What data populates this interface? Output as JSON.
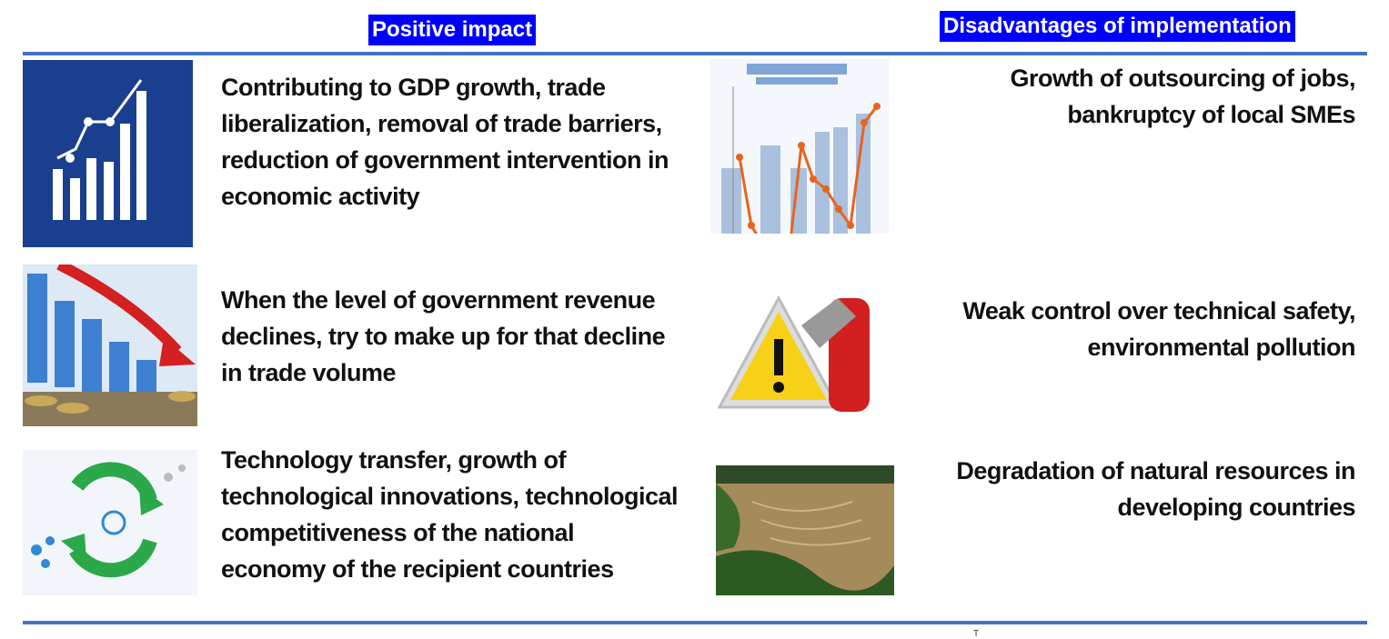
{
  "headers": {
    "positive": "Positive impact",
    "disadvantages": "Disadvantages of implementation"
  },
  "positive_items": [
    {
      "icon": "bar-chart-growth-icon",
      "text": "Contributing to GDP growth, trade liberalization, removal of trade barriers, reduction of government intervention in economic activity"
    },
    {
      "icon": "declining-chart-coins-image",
      "text": "When the level of government revenue declines, try to make up for that decline in trade volume"
    },
    {
      "icon": "technology-cycle-icon",
      "text": "Technology transfer, growth of technological innovations, technological competitiveness of the national economy of the recipient countries"
    }
  ],
  "disadvantage_items": [
    {
      "icon": "unemployment-chart-image",
      "text": "Growth of outsourcing of jobs, bankruptcy of local SMEs"
    },
    {
      "icon": "warning-extinguisher-image",
      "text": "Weak control over technical safety, environmental pollution"
    },
    {
      "icon": "deforestation-image",
      "text": "Degradation of natural resources in developing countries"
    }
  ],
  "footer_mark": "T",
  "colors": {
    "header_bg": "#0000ff",
    "rule": "#4472c4",
    "icon_bg": "#1a3f8f"
  }
}
